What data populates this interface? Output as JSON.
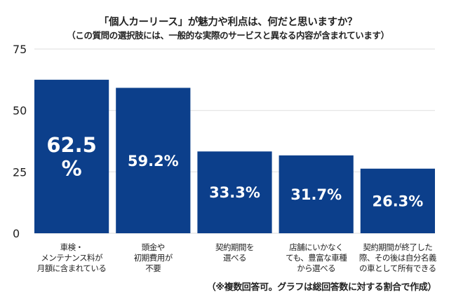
{
  "chart_data": {
    "type": "bar",
    "title": "「個人カーリース」が魅力や利点は、何だと思いますか？",
    "subtitle": "（この質問の選択肢には、一般的な実際のサービスと異なる内容が含まれています）",
    "categories": [
      "車検・\nメンテナンス料が\n月額に含まれている",
      "頭金や\n初期費用が\n不要",
      "契約期間を\n選べる",
      "店舗にいかなく\nても、豊富な車種\nから選べる",
      "契約期間が終了した\n際、その後は自分名義\nの車として所有できる"
    ],
    "values": [
      62.5,
      59.2,
      33.3,
      31.7,
      26.3
    ],
    "data_labels": [
      "62.5\n%",
      "59.2%",
      "33.3%",
      "31.7%",
      "26.3%"
    ],
    "xlabel": "",
    "ylabel": "",
    "ylim": [
      0,
      75
    ],
    "yticks": [
      0,
      25,
      50,
      75
    ],
    "grid": true,
    "legend": "none",
    "colors": {
      "bar": "#0c3f8b",
      "grid": "#e3e3e3",
      "label": "#ffffff"
    },
    "annotation": "（※複数回答可。グラフは総回答数に対する割合で作成）"
  }
}
